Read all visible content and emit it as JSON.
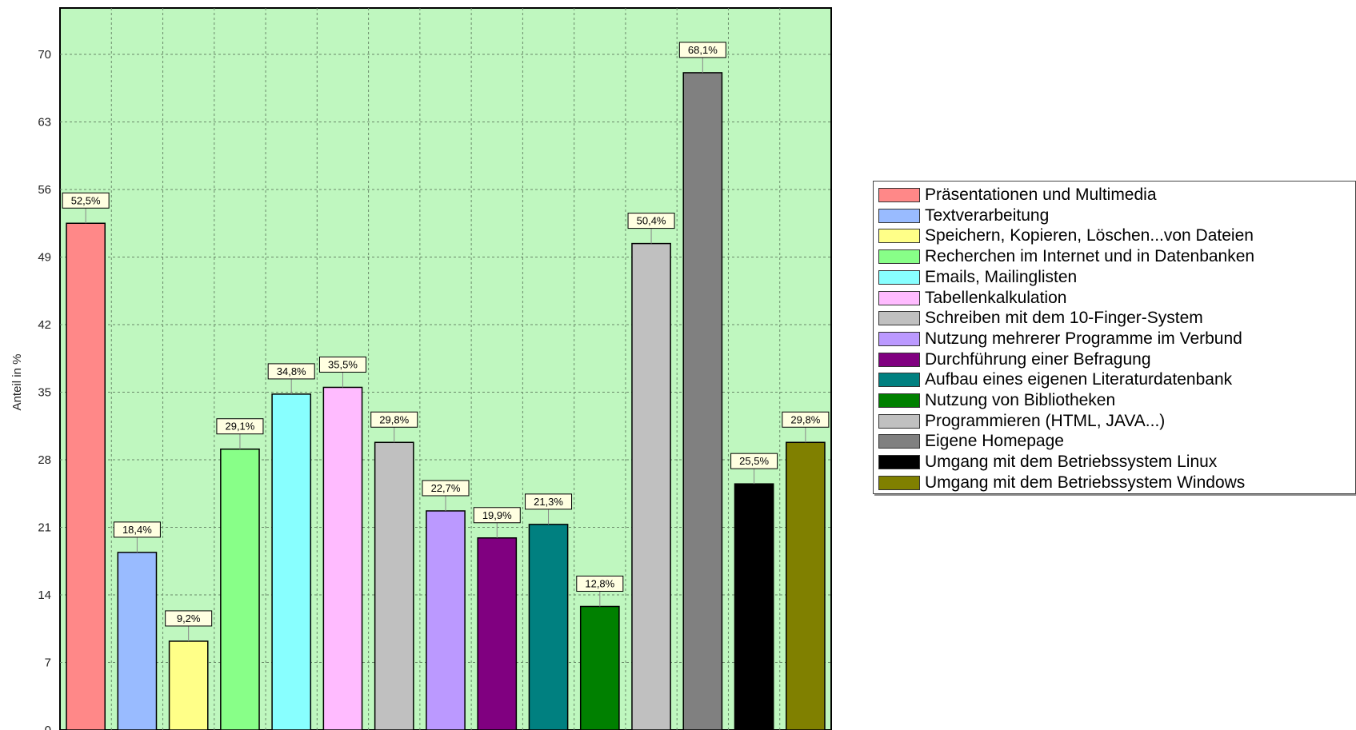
{
  "chart_data": {
    "type": "bar",
    "ylabel": "Anteil in %",
    "ylim": [
      0,
      77
    ],
    "yticks": [
      0,
      7,
      14,
      21,
      28,
      35,
      42,
      49,
      56,
      63,
      70
    ],
    "grid": true,
    "legend_position": "right",
    "plot_background": "#bff7bf",
    "series": [
      {
        "name": "Präsentationen und Multimedia",
        "value": 52.5,
        "label": "52,5%",
        "color": "#ff8888"
      },
      {
        "name": "Textverarbeitung",
        "value": 18.4,
        "label": "18,4%",
        "color": "#99bbff"
      },
      {
        "name": "Speichern, Kopieren, Löschen...von Dateien",
        "value": 9.2,
        "label": "9,2%",
        "color": "#ffff88"
      },
      {
        "name": "Recherchen im Internet und in Datenbanken",
        "value": 29.1,
        "label": "29,1%",
        "color": "#88ff88"
      },
      {
        "name": "Emails, Mailinglisten",
        "value": 34.8,
        "label": "34,8%",
        "color": "#88ffff"
      },
      {
        "name": "Tabellenkalkulation",
        "value": 35.5,
        "label": "35,5%",
        "color": "#ffbbff"
      },
      {
        "name": "Schreiben mit dem 10-Finger-System",
        "value": 29.8,
        "label": "29,8%",
        "color": "#c0c0c0"
      },
      {
        "name": "Nutzung mehrerer Programme im Verbund",
        "value": 22.7,
        "label": "22,7%",
        "color": "#bb99ff"
      },
      {
        "name": "Durchführung einer Befragung",
        "value": 19.9,
        "label": "19,9%",
        "color": "#800080"
      },
      {
        "name": "Aufbau eines eigenen Literaturdatenbank",
        "value": 21.3,
        "label": "21,3%",
        "color": "#008080"
      },
      {
        "name": "Nutzung von Bibliotheken",
        "value": 12.8,
        "label": "12,8%",
        "color": "#008000"
      },
      {
        "name": "Programmieren (HTML, JAVA...)",
        "value": 50.4,
        "label": "50,4%",
        "color": "#c0c0c0"
      },
      {
        "name": "Eigene Homepage",
        "value": 68.1,
        "label": "68,1%",
        "color": "#808080"
      },
      {
        "name": "Umgang mit dem Betriebssystem Linux",
        "value": 25.5,
        "label": "25,5%",
        "color": "#000000"
      },
      {
        "name": "Umgang mit dem Betriebssystem Windows",
        "value": 29.8,
        "label": "29,8%",
        "color": "#808000"
      }
    ]
  }
}
